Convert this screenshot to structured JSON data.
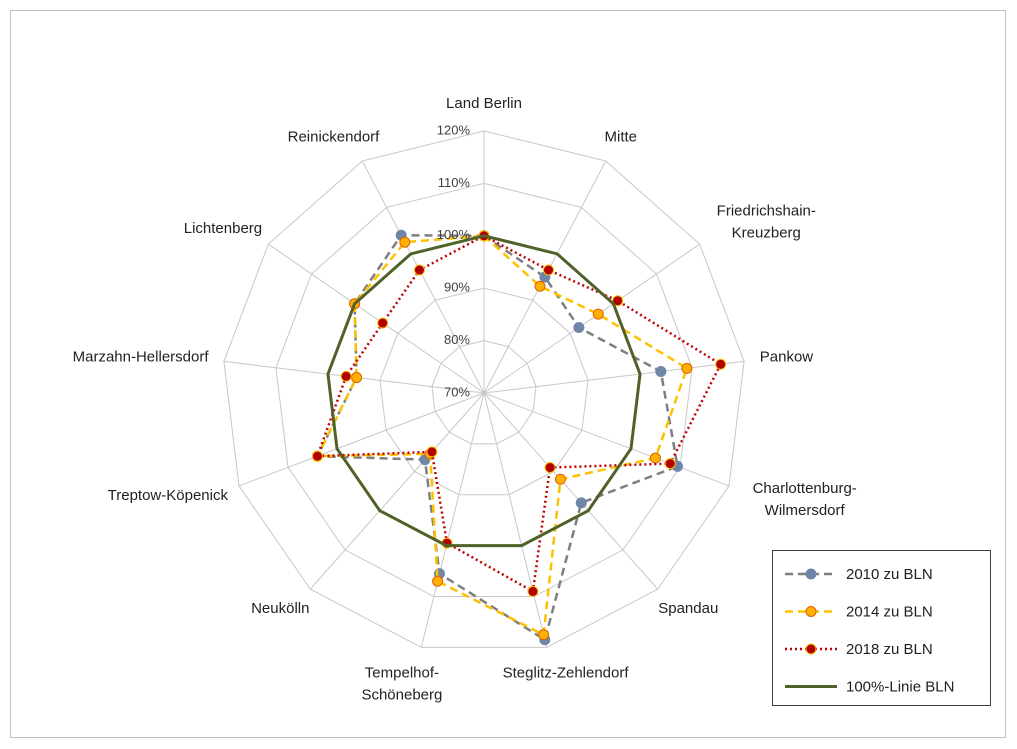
{
  "chart_data": {
    "type": "radar",
    "categories": [
      "Land Berlin",
      "Mitte",
      "Friedrichshain-Kreuzberg",
      "Pankow",
      "Charlottenburg-Wilmersdorf",
      "Spandau",
      "Steglitz-Zehlendorf",
      "Tempelhof-Schöneberg",
      "Neukölln",
      "Treptow-Köpenick",
      "Marzahn-Hellersdorf",
      "Lichtenberg",
      "Reinickendorf"
    ],
    "series": [
      {
        "name": "2010 zu BLN",
        "color": "#7f7f7f",
        "marker_color": "#6f86a8",
        "line_style": "dashed",
        "markers": true,
        "values": [
          100,
          95,
          92,
          104,
          109.5,
          98,
          118.5,
          105.5,
          87,
          104,
          94.5,
          100,
          104
        ]
      },
      {
        "name": "2014 zu BLN",
        "color": "#ffc000",
        "marker_color": "#ffb000",
        "line_style": "dashed",
        "markers": true,
        "values": [
          100,
          93,
          96.5,
          109,
          105,
          92,
          117.5,
          107,
          85.5,
          104,
          94.5,
          100,
          102.5
        ]
      },
      {
        "name": "2018 zu BLN",
        "color": "#c00000",
        "marker_color": "#b00000",
        "line_style": "dotted",
        "markers": true,
        "values": [
          100,
          96.5,
          101,
          115.5,
          108,
          89,
          109,
          99.5,
          85,
          104,
          96.5,
          93.5,
          96.5
        ]
      },
      {
        "name": "100%-Linie BLN",
        "color": "#4f6228",
        "line_style": "solid",
        "markers": false,
        "values": [
          100,
          100,
          100,
          100,
          100,
          100,
          100,
          100,
          100,
          100,
          100,
          100,
          100
        ]
      }
    ],
    "ylim": [
      70,
      120
    ],
    "yticks": [
      {
        "value": 70,
        "label": "70%"
      },
      {
        "value": 80,
        "label": "80%"
      },
      {
        "value": 90,
        "label": "90%"
      },
      {
        "value": 100,
        "label": "100%"
      },
      {
        "value": 110,
        "label": "110%"
      },
      {
        "value": 120,
        "label": "120%"
      }
    ],
    "grid": true,
    "legend": "lower right"
  }
}
